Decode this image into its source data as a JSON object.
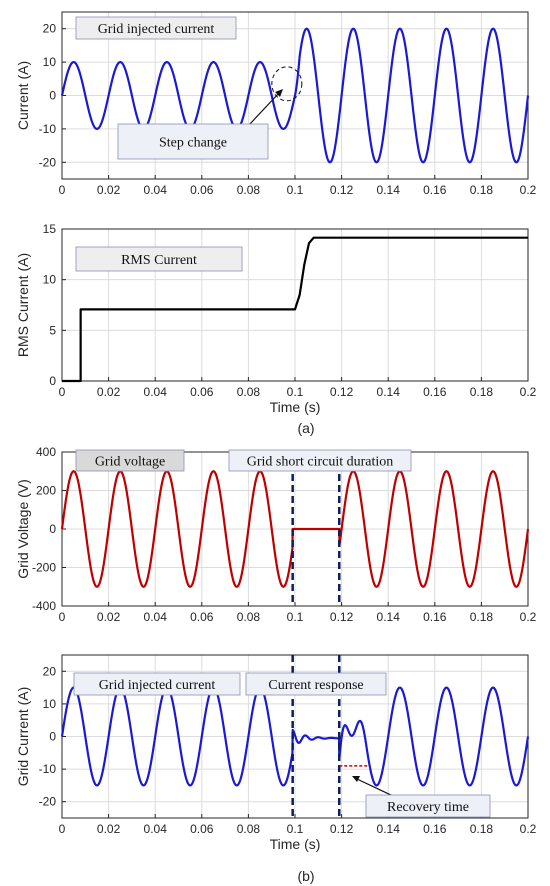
{
  "chart_data": [
    {
      "type": "line",
      "ylabel": "Current (A)",
      "xlabel": "",
      "xlim": [
        0,
        0.2
      ],
      "ylim": [
        -25,
        25
      ],
      "xticks": [
        "0",
        "0.02",
        "0.04",
        "0.06",
        "0.08",
        "0.1",
        "0.12",
        "0.14",
        "0.16",
        "0.18",
        "0.2"
      ],
      "yticks": [
        "-20",
        "-10",
        "0",
        "10",
        "20"
      ],
      "grid": true,
      "series": [
        {
          "color": "#1a1ad6",
          "shape": "sine",
          "frequency_hz": 50,
          "amplitude_before": 10,
          "amplitude_after": 20,
          "step_time": 0.1
        }
      ],
      "annotations": [
        {
          "text": "Grid injected current"
        },
        {
          "text": "Step change"
        }
      ]
    },
    {
      "type": "line",
      "ylabel": "RMS Current (A)",
      "xlabel": "Time (s)",
      "xlim": [
        0,
        0.2
      ],
      "ylim": [
        0,
        15
      ],
      "xticks": [
        "0",
        "0.02",
        "0.04",
        "0.06",
        "0.08",
        "0.1",
        "0.12",
        "0.14",
        "0.16",
        "0.18",
        "0.2"
      ],
      "yticks": [
        "0",
        "5",
        "10",
        "15"
      ],
      "grid": true,
      "series": [
        {
          "color": "#000000",
          "x": [
            0,
            0.008,
            0.008,
            0.1,
            0.102,
            0.104,
            0.106,
            0.108,
            0.2
          ],
          "y": [
            0,
            0,
            7.07,
            7.07,
            8.5,
            11.5,
            13.6,
            14.14,
            14.14
          ]
        }
      ],
      "annotations": [
        {
          "text": "RMS Current"
        }
      ]
    },
    {
      "type": "line",
      "ylabel": "Grid Voltage (V)",
      "xlabel": "",
      "xlim": [
        0,
        0.2
      ],
      "ylim": [
        -400,
        400
      ],
      "xticks": [
        "0",
        "0.02",
        "0.04",
        "0.06",
        "0.08",
        "0.1",
        "0.12",
        "0.14",
        "0.16",
        "0.18",
        "0.2"
      ],
      "yticks": [
        "-400",
        "-200",
        "0",
        "200",
        "400"
      ],
      "grid": true,
      "series": [
        {
          "color": "#c00000",
          "shape": "sine",
          "frequency_hz": 50,
          "amplitude": 300,
          "fault_start": 0.099,
          "fault_end": 0.119
        }
      ],
      "vlines": [
        0.099,
        0.119
      ],
      "annotations": [
        {
          "text": "Grid voltage"
        },
        {
          "text": "Grid short circuit duration"
        }
      ]
    },
    {
      "type": "line",
      "ylabel": "Grid Current (A)",
      "xlabel": "Time (s)",
      "xlim": [
        0,
        0.2
      ],
      "ylim": [
        -25,
        25
      ],
      "xticks": [
        "0",
        "0.02",
        "0.04",
        "0.06",
        "0.08",
        "0.1",
        "0.12",
        "0.14",
        "0.16",
        "0.18",
        "0.2"
      ],
      "yticks": [
        "-20",
        "-10",
        "0",
        "10",
        "20"
      ],
      "grid": true,
      "series": [
        {
          "color": "#1a1ad6",
          "shape": "sine",
          "frequency_hz": 50,
          "amplitude": 15,
          "fault_start": 0.099,
          "fault_end": 0.119
        }
      ],
      "vlines": [
        0.099,
        0.119
      ],
      "recovery_marker": {
        "x_start": 0.119,
        "x_end": 0.131,
        "y": -9
      },
      "annotations": [
        {
          "text": "Grid injected current"
        },
        {
          "text": "Current response"
        },
        {
          "text": "Recovery time"
        }
      ]
    }
  ],
  "captions": [
    "(a)",
    "(b)"
  ]
}
